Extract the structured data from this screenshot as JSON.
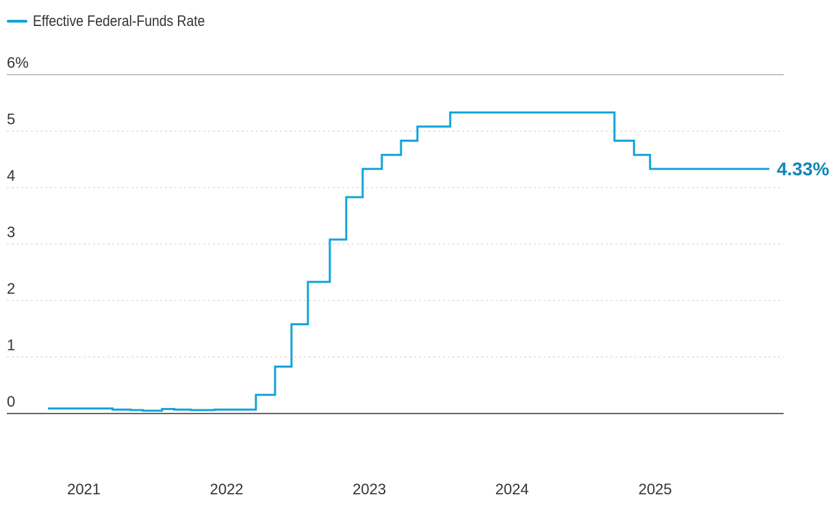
{
  "colors": {
    "series": "#12a3d9",
    "series_label": "#0e86b8",
    "axis": "#333333",
    "grid": "#cfcfcf"
  },
  "chart_data": {
    "type": "line",
    "step": true,
    "series": [
      {
        "name": "Effective Federal-Funds Rate",
        "end_label": "4.33%",
        "points": [
          [
            "2020-10-01",
            0.09
          ],
          [
            "2021-03-15",
            0.07
          ],
          [
            "2021-05-01",
            0.06
          ],
          [
            "2021-06-01",
            0.05
          ],
          [
            "2021-07-20",
            0.08
          ],
          [
            "2021-08-20",
            0.07
          ],
          [
            "2021-10-01",
            0.06
          ],
          [
            "2021-12-01",
            0.07
          ],
          [
            "2022-03-17",
            0.08
          ],
          [
            "2022-03-17",
            0.33
          ],
          [
            "2022-05-05",
            0.83
          ],
          [
            "2022-06-16",
            1.58
          ],
          [
            "2022-07-28",
            2.33
          ],
          [
            "2022-08-20",
            2.33
          ],
          [
            "2022-09-22",
            3.08
          ],
          [
            "2022-11-03",
            3.83
          ],
          [
            "2022-12-15",
            4.33
          ],
          [
            "2023-02-02",
            4.58
          ],
          [
            "2023-03-23",
            4.83
          ],
          [
            "2023-05-04",
            5.08
          ],
          [
            "2023-07-27",
            5.33
          ],
          [
            "2024-09-19",
            4.83
          ],
          [
            "2024-11-08",
            4.58
          ],
          [
            "2024-12-19",
            4.33
          ],
          [
            "2025-10-20",
            4.33
          ]
        ]
      }
    ],
    "x_ticks": [
      "2021",
      "2022",
      "2023",
      "2024",
      "2025"
    ],
    "y_ticks": [
      {
        "value": 0,
        "label": "0"
      },
      {
        "value": 1,
        "label": "1"
      },
      {
        "value": 2,
        "label": "2"
      },
      {
        "value": 3,
        "label": "3"
      },
      {
        "value": 4,
        "label": "4"
      },
      {
        "value": 5,
        "label": "5"
      },
      {
        "value": 6,
        "label": "6%"
      }
    ],
    "ylim": [
      0,
      6
    ],
    "xlim": [
      "2020-07-01",
      "2025-10-20"
    ],
    "grid": true,
    "legend_position": "top-left"
  }
}
